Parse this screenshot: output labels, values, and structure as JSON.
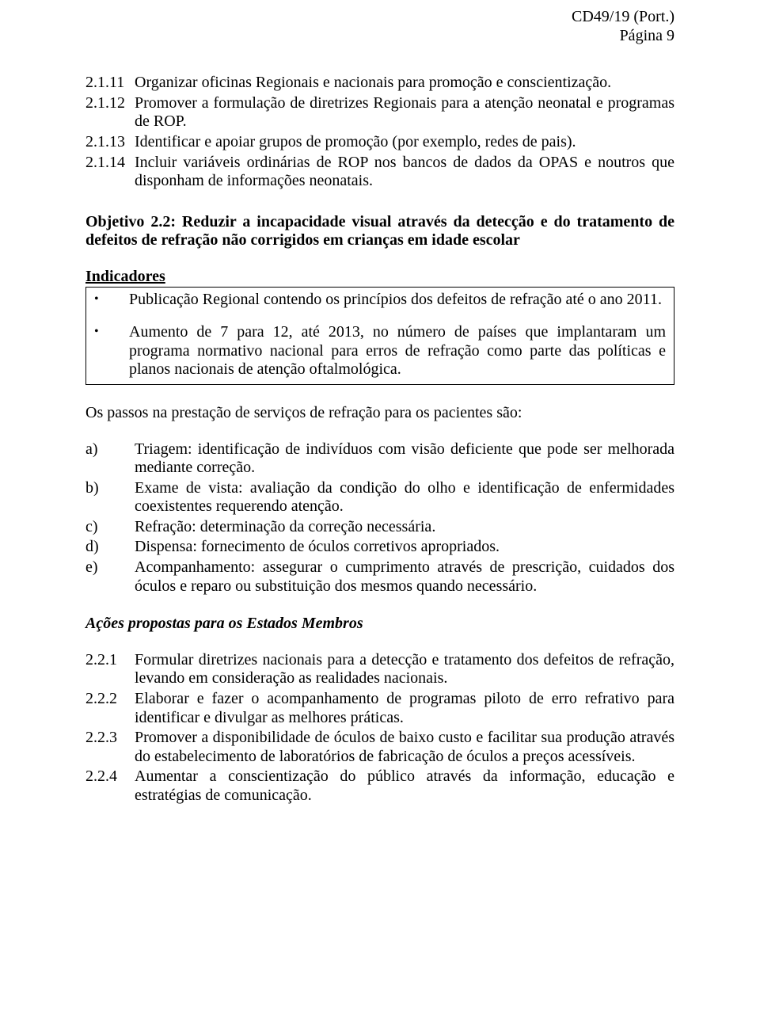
{
  "header": {
    "doc_ref": "CD49/19  (Port.)",
    "page_ref": "Página 9"
  },
  "list1": {
    "items": [
      {
        "num": "2.1.11",
        "text": "Organizar oficinas Regionais e nacionais para promoção e conscientização."
      },
      {
        "num": "2.1.12",
        "text": "Promover a formulação de diretrizes Regionais para a atenção neonatal e programas de ROP."
      },
      {
        "num": "2.1.13",
        "text": "Identificar e apoiar grupos de promoção (por exemplo, redes de pais)."
      },
      {
        "num": "2.1.14",
        "text": "Incluir variáveis ordinárias de ROP nos bancos de dados da OPAS e noutros que disponham de informações neonatais."
      }
    ]
  },
  "objective": "Objetivo 2.2: Reduzir a incapacidade visual através da detecção e do tratamento de defeitos de refração não corrigidos em crianças em idade escolar",
  "indicadores_label": "Indicadores",
  "indicadores": {
    "items": [
      {
        "text": "Publicação Regional contendo os princípios dos defeitos de refração até o ano 2011."
      },
      {
        "text": "Aumento de 7 para 12, até 2013, no número de países que implantaram um programa normativo nacional para erros de refração como parte das políticas e planos nacionais de atenção oftalmológica."
      }
    ]
  },
  "para_servicos": "Os passos na prestação de serviços de refração para os pacientes são:",
  "letter_list": {
    "items": [
      {
        "num": "a)",
        "text": "Triagem: identificação de indivíduos com visão deficiente que pode ser melhorada mediante correção."
      },
      {
        "num": "b)",
        "text": "Exame de vista: avaliação da condição do olho e identificação de enfermidades coexistentes requerendo atenção."
      },
      {
        "num": "c)",
        "text": "Refração: determinação da correção necessária."
      },
      {
        "num": "d)",
        "text": "Dispensa: fornecimento de óculos corretivos apropriados."
      },
      {
        "num": "e)",
        "text": "Acompanhamento: assegurar o cumprimento através de prescrição, cuidados dos óculos e reparo ou substituição dos mesmos quando necessário."
      }
    ]
  },
  "acoes_heading": "Ações propostas para os Estados Membros",
  "list2": {
    "items": [
      {
        "num": "2.2.1",
        "text": "Formular diretrizes nacionais para a detecção e tratamento dos defeitos de refração, levando em consideração as realidades nacionais."
      },
      {
        "num": "2.2.2",
        "text": "Elaborar e fazer o acompanhamento de programas piloto de erro refrativo para identificar e divulgar as melhores práticas."
      },
      {
        "num": "2.2.3",
        "text": "Promover a disponibilidade de óculos de baixo custo e facilitar sua produção através do estabelecimento de laboratórios de fabricação de óculos a preços acessíveis."
      },
      {
        "num": "2.2.4",
        "text": "Aumentar a conscientização do público através da informação, educação e estratégias de comunicação."
      }
    ]
  }
}
